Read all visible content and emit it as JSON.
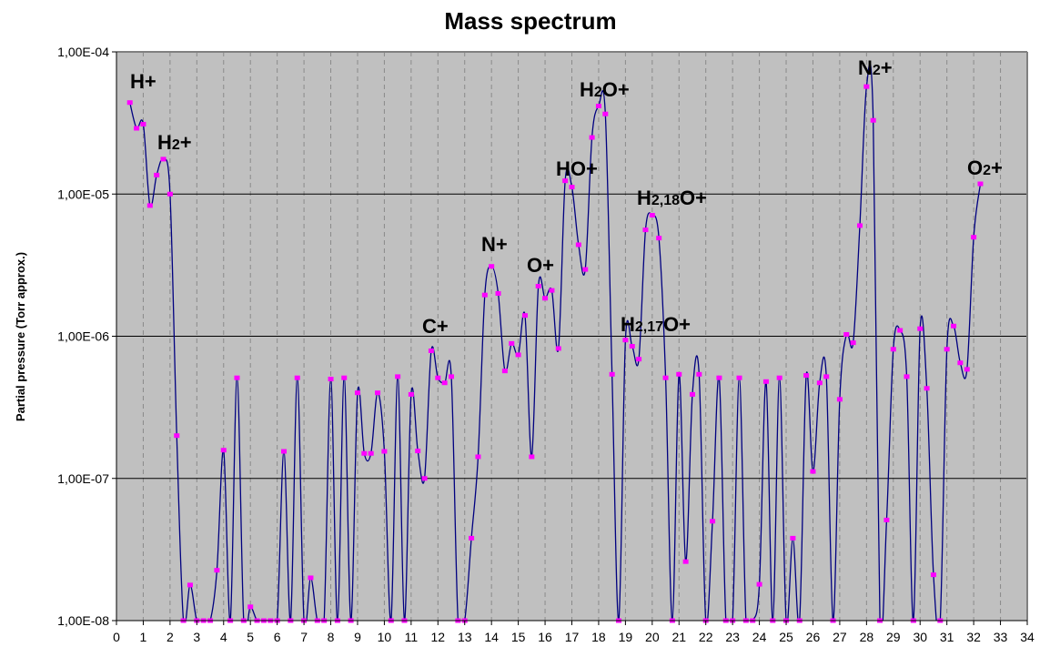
{
  "chart_data": {
    "type": "line",
    "title": "Mass spectrum",
    "xlabel": "",
    "ylabel": "Partial pressure (Torr approx.)",
    "xlim": [
      0,
      34
    ],
    "ylim": [
      1e-08,
      0.0001
    ],
    "y_scale": "log",
    "x_ticks": [
      "0",
      "1",
      "2",
      "3",
      "4",
      "5",
      "6",
      "7",
      "8",
      "9",
      "10",
      "11",
      "12",
      "13",
      "14",
      "15",
      "16",
      "17",
      "18",
      "19",
      "20",
      "21",
      "22",
      "23",
      "24",
      "25",
      "26",
      "27",
      "28",
      "29",
      "30",
      "31",
      "32",
      "33",
      "34"
    ],
    "y_ticks": [
      {
        "value": 0.0001,
        "label": "1,00E-04"
      },
      {
        "value": 1e-05,
        "label": "1,00E-05"
      },
      {
        "value": 1e-06,
        "label": "1,00E-06"
      },
      {
        "value": 1e-07,
        "label": "1,00E-07"
      },
      {
        "value": 1e-08,
        "label": "1,00E-08"
      }
    ],
    "grid": {
      "horizontal": "solid at decades",
      "vertical": "dashed at integers"
    },
    "colors": {
      "plot_background": "#C0C0C0",
      "line": "#000080",
      "markers": "#FF00FF"
    },
    "smoothed": true,
    "points": [
      [
        0.5,
        4.4e-05
      ],
      [
        0.75,
        2.9e-05
      ],
      [
        1.0,
        3.1e-05
      ],
      [
        1.25,
        8.3e-06
      ],
      [
        1.5,
        1.36e-05
      ],
      [
        1.75,
        1.76e-05
      ],
      [
        2.0,
        1e-05
      ],
      [
        2.25,
        2e-07
      ],
      [
        2.5,
        1e-08
      ],
      [
        2.75,
        1.78e-08
      ],
      [
        3.0,
        1e-08
      ],
      [
        3.25,
        1e-08
      ],
      [
        3.5,
        1e-08
      ],
      [
        3.75,
        2.26e-08
      ],
      [
        4.0,
        1.58e-07
      ],
      [
        4.25,
        1e-08
      ],
      [
        4.5,
        5.1e-07
      ],
      [
        4.75,
        1e-08
      ],
      [
        5.0,
        1.25e-08
      ],
      [
        5.25,
        1e-08
      ],
      [
        5.5,
        1e-08
      ],
      [
        5.75,
        1e-08
      ],
      [
        6.0,
        1e-08
      ],
      [
        6.25,
        1.55e-07
      ],
      [
        6.5,
        1e-08
      ],
      [
        6.75,
        5.1e-07
      ],
      [
        7.0,
        1e-08
      ],
      [
        7.25,
        2e-08
      ],
      [
        7.5,
        1e-08
      ],
      [
        7.75,
        1e-08
      ],
      [
        8.0,
        5e-07
      ],
      [
        8.25,
        1e-08
      ],
      [
        8.5,
        5.1e-07
      ],
      [
        8.75,
        1e-08
      ],
      [
        9.0,
        4e-07
      ],
      [
        9.25,
        1.5e-07
      ],
      [
        9.5,
        1.5e-07
      ],
      [
        9.75,
        4e-07
      ],
      [
        10.0,
        1.55e-07
      ],
      [
        10.25,
        1e-08
      ],
      [
        10.5,
        5.2e-07
      ],
      [
        10.75,
        1e-08
      ],
      [
        11.0,
        3.9e-07
      ],
      [
        11.25,
        1.56e-07
      ],
      [
        11.5,
        1e-07
      ],
      [
        11.75,
        7.9e-07
      ],
      [
        12.0,
        5.1e-07
      ],
      [
        12.25,
        4.7e-07
      ],
      [
        12.5,
        5.2e-07
      ],
      [
        12.75,
        1e-08
      ],
      [
        13.0,
        1e-08
      ],
      [
        13.25,
        3.8e-08
      ],
      [
        13.5,
        1.42e-07
      ],
      [
        13.75,
        1.95e-06
      ],
      [
        14.0,
        3.1e-06
      ],
      [
        14.25,
        2e-06
      ],
      [
        14.5,
        5.7e-07
      ],
      [
        14.75,
        8.9e-07
      ],
      [
        15.0,
        7.4e-07
      ],
      [
        15.25,
        1.4e-06
      ],
      [
        15.5,
        1.42e-07
      ],
      [
        15.75,
        2.25e-06
      ],
      [
        16.0,
        1.85e-06
      ],
      [
        16.25,
        2.1e-06
      ],
      [
        16.5,
        8.2e-07
      ],
      [
        16.75,
        1.24e-05
      ],
      [
        17.0,
        1.12e-05
      ],
      [
        17.25,
        4.4e-06
      ],
      [
        17.5,
        2.95e-06
      ],
      [
        17.75,
        2.5e-05
      ],
      [
        18.0,
        4.16e-05
      ],
      [
        18.25,
        3.66e-05
      ],
      [
        18.5,
        5.4e-07
      ],
      [
        18.75,
        1e-08
      ],
      [
        19.0,
        9.4e-07
      ],
      [
        19.25,
        8.5e-07
      ],
      [
        19.5,
        6.9e-07
      ],
      [
        19.75,
        5.6e-06
      ],
      [
        20.0,
        7.1e-06
      ],
      [
        20.25,
        4.9e-06
      ],
      [
        20.5,
        5.1e-07
      ],
      [
        20.75,
        1e-08
      ],
      [
        21.0,
        5.4e-07
      ],
      [
        21.25,
        2.6e-08
      ],
      [
        21.5,
        3.9e-07
      ],
      [
        21.75,
        5.4e-07
      ],
      [
        22.0,
        1e-08
      ],
      [
        22.25,
        5e-08
      ],
      [
        22.5,
        5.1e-07
      ],
      [
        22.75,
        1e-08
      ],
      [
        23.0,
        1e-08
      ],
      [
        23.25,
        5.1e-07
      ],
      [
        23.5,
        1e-08
      ],
      [
        23.75,
        1e-08
      ],
      [
        24.0,
        1.8e-08
      ],
      [
        24.25,
        4.8e-07
      ],
      [
        24.5,
        1e-08
      ],
      [
        24.75,
        5.1e-07
      ],
      [
        25.0,
        1e-08
      ],
      [
        25.25,
        3.8e-08
      ],
      [
        25.5,
        1e-08
      ],
      [
        25.75,
        5.3e-07
      ],
      [
        26.0,
        1.12e-07
      ],
      [
        26.25,
        4.7e-07
      ],
      [
        26.5,
        5.2e-07
      ],
      [
        26.75,
        1e-08
      ],
      [
        27.0,
        3.6e-07
      ],
      [
        27.25,
        1.03e-06
      ],
      [
        27.5,
        9e-07
      ],
      [
        27.75,
        6e-06
      ],
      [
        28.0,
        5.7e-05
      ],
      [
        28.25,
        3.3e-05
      ],
      [
        28.5,
        1e-08
      ],
      [
        28.75,
        5.1e-08
      ],
      [
        29.0,
        8.1e-07
      ],
      [
        29.25,
        1.1e-06
      ],
      [
        29.5,
        5.2e-07
      ],
      [
        29.75,
        1e-08
      ],
      [
        30.0,
        1.13e-06
      ],
      [
        30.25,
        4.3e-07
      ],
      [
        30.5,
        2.1e-08
      ],
      [
        30.75,
        1e-08
      ],
      [
        31.0,
        8.1e-07
      ],
      [
        31.25,
        1.18e-06
      ],
      [
        31.5,
        6.5e-07
      ],
      [
        31.75,
        5.85e-07
      ],
      [
        32.0,
        4.97e-06
      ],
      [
        32.25,
        1.18e-05
      ]
    ],
    "annotations": [
      {
        "main": "H",
        "sub": "",
        "rest": "+"
      },
      {
        "main": "H",
        "sub": "2",
        "rest": "+"
      },
      {
        "main": "C",
        "sub": "",
        "rest": "+"
      },
      {
        "main": "N",
        "sub": "",
        "rest": "+"
      },
      {
        "main": "O",
        "sub": "",
        "rest": "+"
      },
      {
        "main": "HO",
        "sub": "",
        "rest": "+"
      },
      {
        "main": "H",
        "sub": "2",
        "rest": "O+"
      },
      {
        "main": "H",
        "sub": "2,18",
        "rest": "O+"
      },
      {
        "main": "H",
        "sub": "2,17",
        "rest": "O+"
      },
      {
        "main": "N",
        "sub": "2",
        "rest": "+"
      },
      {
        "main": "O",
        "sub": "2",
        "rest": "+"
      }
    ]
  }
}
